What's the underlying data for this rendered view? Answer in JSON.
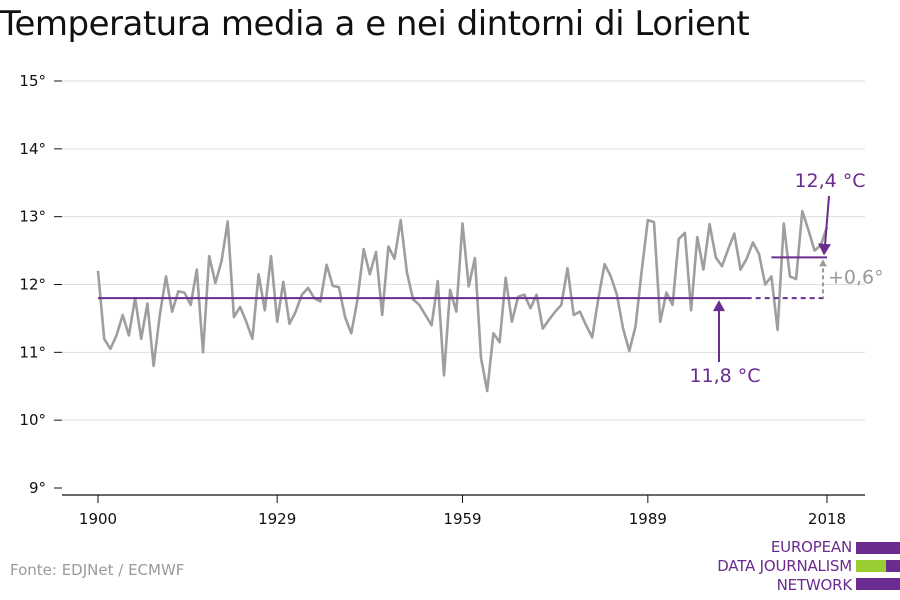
{
  "title": "Temperatura media a e nei dintorni di Lorient",
  "source": "Fonte: EDJNet / ECMWF",
  "logo": {
    "line1": "EUROPEAN",
    "line2": "DATA JOURNALISM",
    "line3": "NETWORK"
  },
  "colors": {
    "series": "#9e9e9e",
    "accent": "#6a2c8e",
    "axis": "#111111",
    "grid": "#dddddd",
    "muted": "#9a9a9a",
    "logo_green": "#9acd32"
  },
  "chart_data": {
    "type": "line",
    "title": "Temperatura media a e nei dintorni di Lorient",
    "xlabel": "",
    "ylabel": "",
    "xlim": [
      1900,
      2018
    ],
    "ylim": [
      9,
      15
    ],
    "x_ticks": [
      1900,
      1929,
      1959,
      1989,
      2018
    ],
    "y_ticks": [
      9,
      10,
      11,
      12,
      13,
      14,
      15
    ],
    "y_tick_labels": [
      "9°",
      "10°",
      "11°",
      "12°",
      "13°",
      "14°",
      "15°"
    ],
    "grid": true,
    "series": [
      {
        "x": [
          1900,
          1901,
          1902,
          1903,
          1904,
          1905,
          1906,
          1907,
          1908,
          1909,
          1910,
          1911,
          1912,
          1913,
          1914,
          1915,
          1916,
          1917,
          1918,
          1919,
          1920,
          1921,
          1922,
          1923,
          1924,
          1925,
          1926,
          1927,
          1928,
          1929,
          1930,
          1931,
          1932,
          1933,
          1934,
          1935,
          1936,
          1937,
          1938,
          1939,
          1940,
          1941,
          1942,
          1943,
          1944,
          1945,
          1946,
          1947,
          1948,
          1949,
          1950,
          1951,
          1952,
          1953,
          1954,
          1955,
          1956,
          1957,
          1958,
          1959,
          1960,
          1961,
          1962,
          1963,
          1964,
          1965,
          1966,
          1967,
          1968,
          1969,
          1970,
          1971,
          1972,
          1973,
          1974,
          1975,
          1976,
          1977,
          1978,
          1979,
          1980,
          1981,
          1982,
          1983,
          1984,
          1985,
          1986,
          1987,
          1988,
          1989,
          1990,
          1991,
          1992,
          1993,
          1994,
          1995,
          1996,
          1997,
          1998,
          1999,
          2000,
          2001,
          2002,
          2003,
          2004,
          2005,
          2006,
          2007,
          2008,
          2009,
          2010,
          2011,
          2012,
          2013,
          2014,
          2015,
          2016,
          2017,
          2018
        ],
        "values": [
          12.2,
          11.2,
          11.05,
          11.25,
          11.55,
          11.25,
          11.8,
          11.2,
          11.72,
          10.8,
          11.55,
          12.12,
          11.6,
          11.9,
          11.88,
          11.7,
          12.22,
          11.0,
          12.42,
          12.02,
          12.35,
          12.93,
          11.52,
          11.67,
          11.45,
          11.2,
          12.15,
          11.62,
          12.42,
          11.45,
          12.04,
          11.42,
          11.6,
          11.85,
          11.95,
          11.8,
          11.75,
          12.29,
          11.98,
          11.96,
          11.52,
          11.28,
          11.78,
          12.52,
          12.15,
          12.48,
          11.55,
          12.56,
          12.38,
          12.95,
          12.18,
          11.78,
          11.7,
          11.55,
          11.4,
          12.05,
          10.66,
          11.92,
          11.6,
          12.9,
          11.97,
          12.39,
          10.92,
          10.43,
          11.28,
          11.15,
          12.1,
          11.45,
          11.82,
          11.85,
          11.65,
          11.85,
          11.35,
          11.48,
          11.6,
          11.7,
          12.24,
          11.55,
          11.6,
          11.4,
          11.22,
          11.8,
          12.3,
          12.12,
          11.85,
          11.35,
          11.02,
          11.38,
          12.2,
          12.95,
          12.92,
          11.45,
          11.88,
          11.7,
          12.67,
          12.76,
          11.62,
          12.7,
          12.22,
          12.89,
          12.4,
          12.27,
          12.52,
          12.75,
          12.22,
          12.38,
          12.62,
          12.45,
          12.0,
          12.12,
          11.33,
          12.9,
          12.12,
          12.08,
          13.08,
          12.8,
          12.5,
          12.58,
          12.85
        ]
      }
    ],
    "reference_lines": [
      {
        "label": "11,8 °C",
        "value": 11.8,
        "x_start": 1900,
        "x_solid_end": 2005,
        "x_end": 2018
      },
      {
        "label": "12,4 °C",
        "value": 12.4,
        "x_start": 2009,
        "x_end": 2018
      }
    ],
    "difference_label": "+0,6°"
  }
}
